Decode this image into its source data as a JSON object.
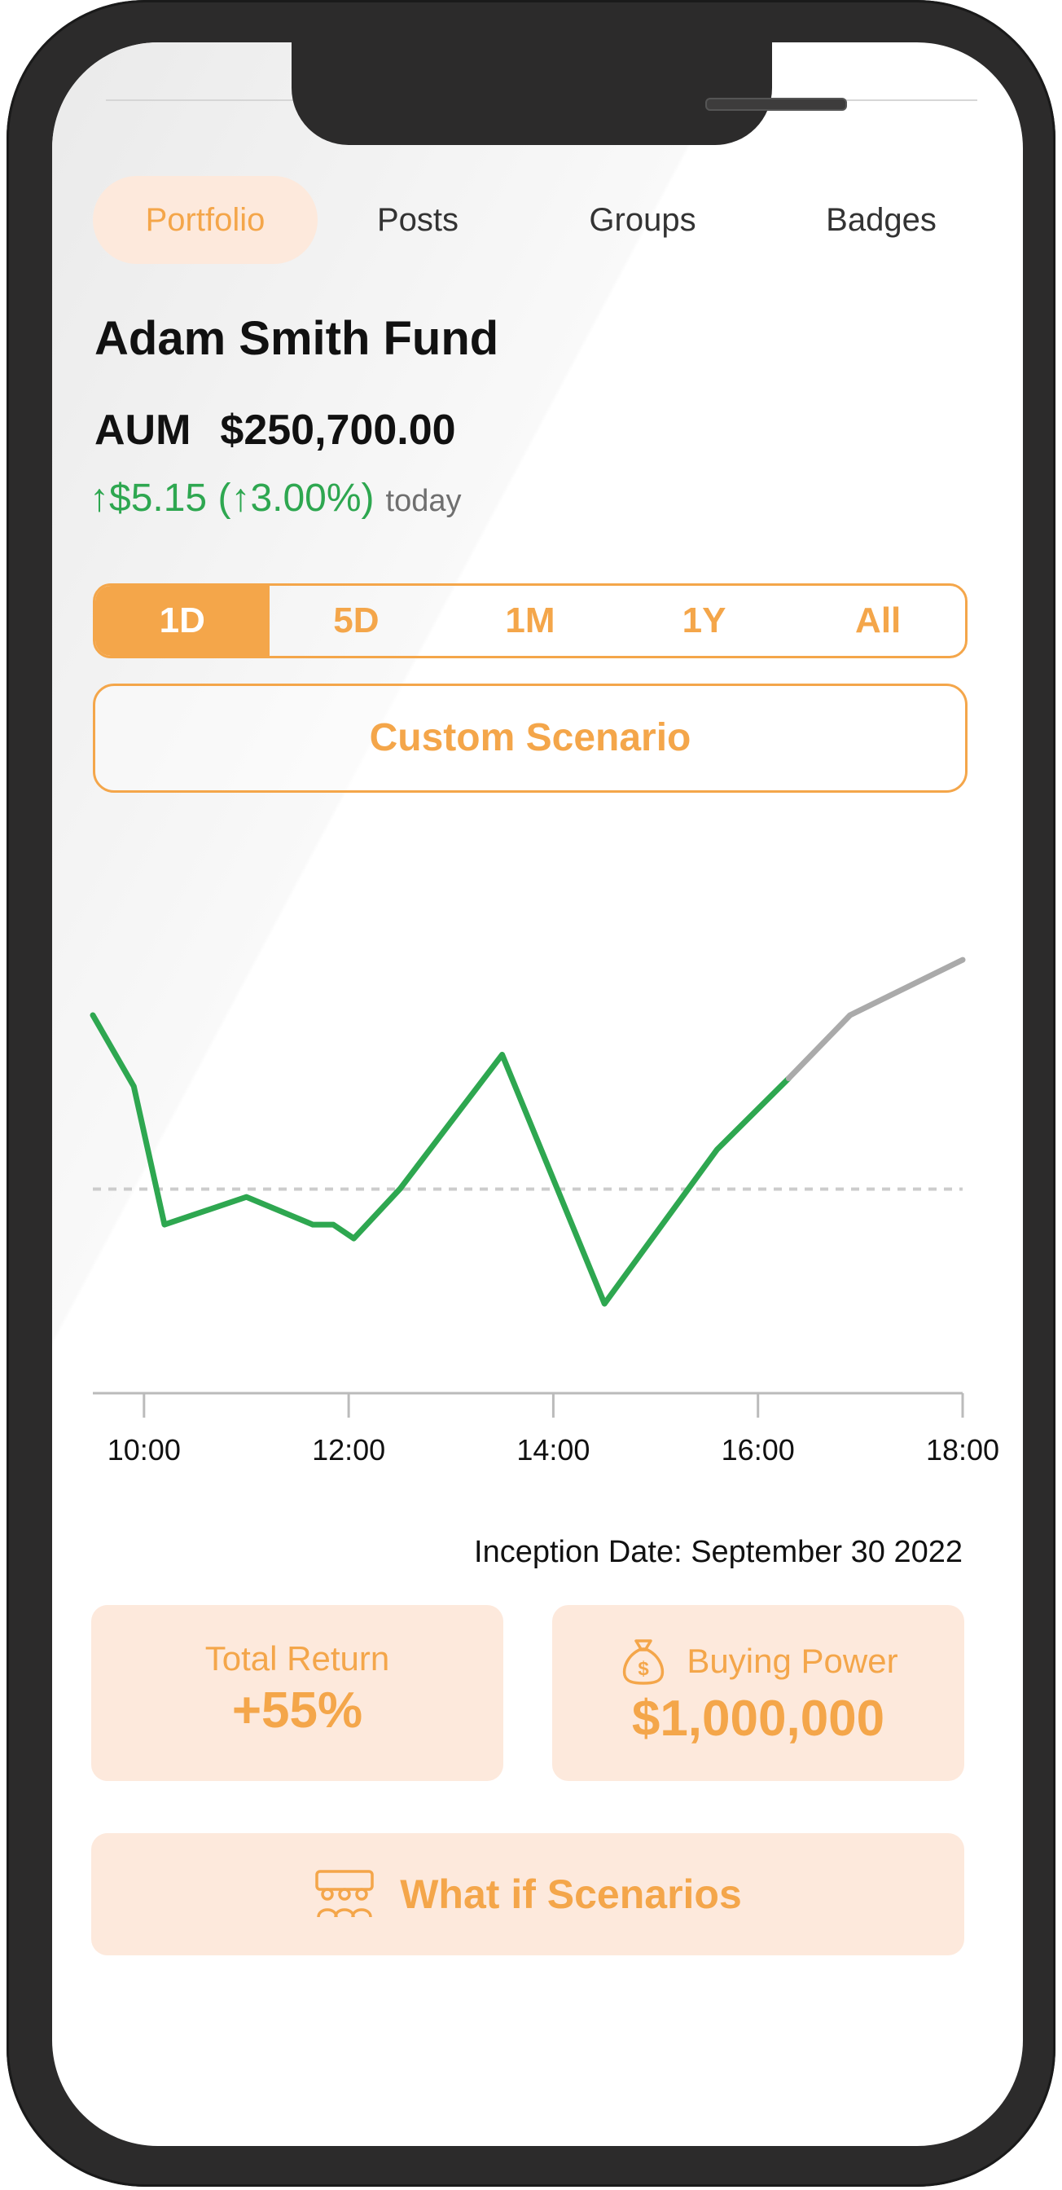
{
  "tabs": [
    {
      "label": "Portfolio",
      "active": true
    },
    {
      "label": "Posts",
      "active": false
    },
    {
      "label": "Groups",
      "active": false
    },
    {
      "label": "Badges",
      "active": false
    }
  ],
  "fund": {
    "name": "Adam Smith Fund",
    "aum_label": "AUM",
    "aum_value": "$250,700.00",
    "change_text": "↑$5.15 (↑3.00%)",
    "change_period": "today"
  },
  "ranges": [
    {
      "label": "1D",
      "active": true
    },
    {
      "label": "5D",
      "active": false
    },
    {
      "label": "1M",
      "active": false
    },
    {
      "label": "1Y",
      "active": false
    },
    {
      "label": "All",
      "active": false
    }
  ],
  "custom_scenario_label": "Custom Scenario",
  "inception_text": "Inception Date: September 30 2022",
  "total_return": {
    "label": "Total Return",
    "value": "+55%"
  },
  "buying_power": {
    "label": "Buying Power",
    "value": "$1,000,000",
    "icon": "money-bag-icon"
  },
  "what_if": {
    "label": "What if Scenarios",
    "icon": "group-icon"
  },
  "colors": {
    "accent": "#f4a64a",
    "accent_bg": "#fde9dc",
    "up": "#2ea750",
    "projection": "#aaaaaa",
    "baseline": "#cccccc"
  },
  "chart_data": {
    "type": "line",
    "x_ticks": [
      "10:00",
      "12:00",
      "14:00",
      "16:00",
      "18:00"
    ],
    "xlim_hours": [
      9.5,
      18.0
    ],
    "ylim": [
      -1.0,
      1.35
    ],
    "baseline": 0,
    "series": [
      {
        "style": "actual",
        "points": [
          [
            9.5,
            0.88
          ],
          [
            9.9,
            0.52
          ],
          [
            10.2,
            -0.18
          ],
          [
            11.0,
            -0.04
          ],
          [
            11.65,
            -0.18
          ],
          [
            11.85,
            -0.18
          ],
          [
            12.05,
            -0.25
          ],
          [
            12.5,
            0.0
          ],
          [
            13.5,
            0.68
          ],
          [
            14.5,
            -0.58
          ],
          [
            15.6,
            0.2
          ],
          [
            16.3,
            0.56
          ]
        ]
      },
      {
        "style": "projection",
        "points": [
          [
            16.3,
            0.56
          ],
          [
            16.9,
            0.88
          ],
          [
            18.0,
            1.16
          ]
        ]
      }
    ]
  }
}
